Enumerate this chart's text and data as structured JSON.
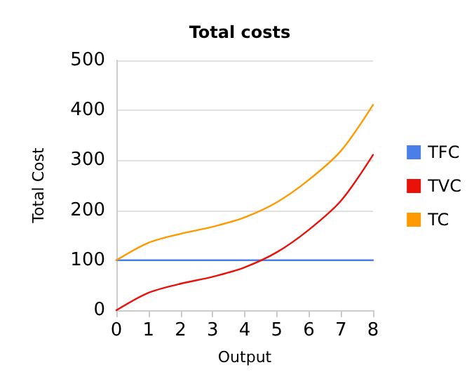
{
  "chart_data": {
    "type": "line",
    "title": "Total costs",
    "xlabel": "Output",
    "ylabel": "Total Cost",
    "x": [
      0,
      1,
      2,
      3,
      4,
      5,
      6,
      7,
      8
    ],
    "series": [
      {
        "name": "TFC",
        "color": "#4a7ee8",
        "values": [
          100,
          100,
          100,
          100,
          100,
          100,
          100,
          100,
          100
        ]
      },
      {
        "name": "TVC",
        "color": "#e8120a",
        "values": [
          0,
          35,
          53,
          67,
          86,
          116,
          161,
          219,
          311
        ]
      },
      {
        "name": "TC",
        "color": "#ff9900",
        "values": [
          100,
          135,
          153,
          167,
          186,
          216,
          261,
          319,
          411
        ]
      }
    ],
    "xlim": [
      0,
      8
    ],
    "xticks": [
      0,
      1,
      2,
      3,
      4,
      5,
      6,
      7,
      8
    ],
    "ylim": [
      0,
      500
    ],
    "yticks": [
      0,
      100,
      200,
      300,
      400,
      500
    ],
    "grid": "y",
    "legend": "right",
    "marker": "none"
  }
}
